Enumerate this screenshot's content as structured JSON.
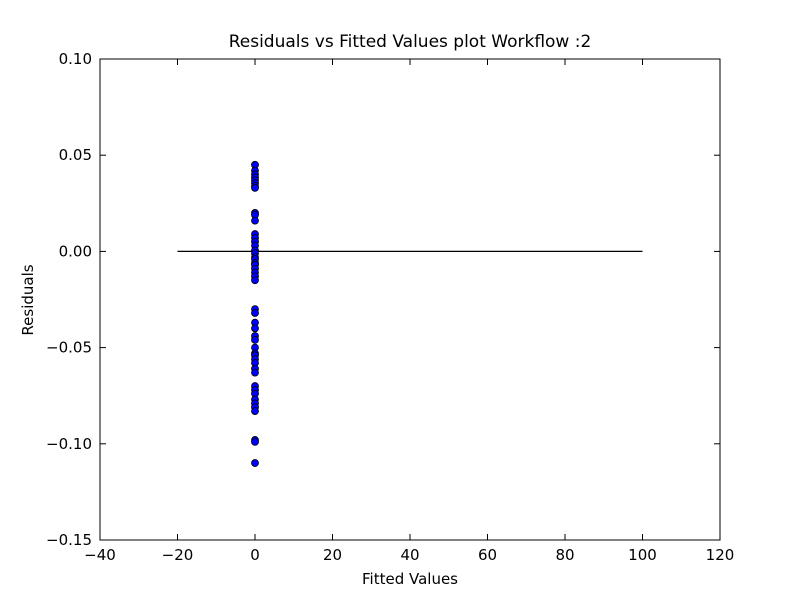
{
  "chart_data": {
    "type": "scatter",
    "title": "Residuals vs Fitted Values plot Workflow :2",
    "xlabel": "Fitted Values",
    "ylabel": "Residuals",
    "xlim": [
      -40,
      120
    ],
    "ylim": [
      -0.15,
      0.1
    ],
    "xticks": [
      {
        "value": -40,
        "label": "−40"
      },
      {
        "value": -20,
        "label": "−20"
      },
      0,
      20,
      40,
      60,
      80,
      100,
      120
    ],
    "yticks": [
      {
        "value": -0.15,
        "label": "−0.15"
      },
      {
        "value": -0.1,
        "label": "−0.10"
      },
      {
        "value": -0.05,
        "label": "−0.05"
      },
      {
        "value": 0,
        "label": "0.00"
      },
      {
        "value": 0.05,
        "label": "0.05"
      },
      {
        "value": 0.1,
        "label": "0.10"
      }
    ],
    "series": [
      {
        "color": "#0000ff",
        "x": [
          0,
          0,
          0,
          0,
          0,
          0,
          0,
          0,
          0,
          0,
          0,
          0,
          0,
          0,
          0,
          0,
          0,
          0,
          0,
          0,
          0,
          0,
          0,
          0,
          0,
          0,
          0,
          0,
          0,
          0,
          0,
          0,
          0,
          0,
          0,
          0,
          0,
          0,
          0,
          0,
          0,
          0,
          0,
          0,
          0,
          0,
          0,
          0
        ],
        "y": [
          0.045,
          0.042,
          0.04,
          0.0385,
          0.037,
          0.0354,
          0.034,
          0.033,
          0.02,
          0.019,
          0.016,
          0.009,
          0.007,
          0.005,
          0.003,
          0.0005,
          -0.001,
          -0.003,
          -0.004,
          -0.006,
          -0.007,
          -0.009,
          -0.011,
          -0.013,
          -0.015,
          -0.03,
          -0.032,
          -0.037,
          -0.04,
          -0.044,
          -0.046,
          -0.05,
          -0.053,
          -0.054,
          -0.056,
          -0.058,
          -0.061,
          -0.063,
          -0.07,
          -0.072,
          -0.074,
          -0.077,
          -0.079,
          -0.081,
          -0.083,
          -0.098,
          -0.099,
          -0.11
        ]
      }
    ],
    "line": {
      "x": [
        -20,
        100
      ],
      "y": [
        0,
        0
      ],
      "color": "#000000"
    }
  }
}
